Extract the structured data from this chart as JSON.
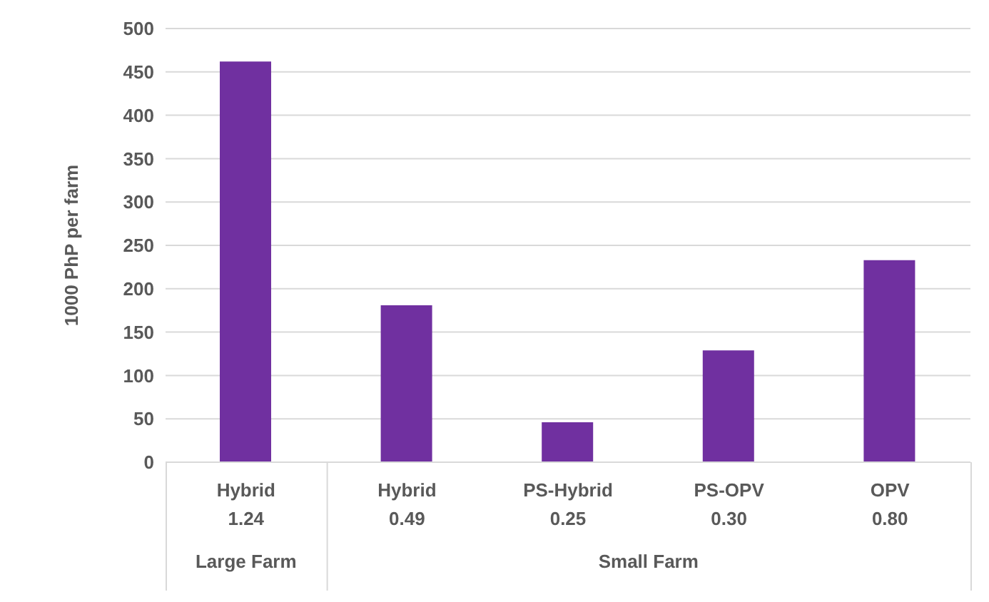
{
  "chart_data": {
    "type": "bar",
    "ylabel": "1000 PhP per farm",
    "categories": [
      "Hybrid\n1.24",
      "Hybrid\n0.49",
      "PS-Hybrid\n0.25",
      "PS-OPV\n0.30",
      "OPV\n0.80"
    ],
    "values": [
      462,
      181,
      46,
      129,
      233
    ],
    "color": "#7030a0",
    "ylim": [
      0,
      500
    ],
    "yticks": [
      0,
      50,
      100,
      150,
      200,
      250,
      300,
      350,
      400,
      450,
      500
    ],
    "grid": "y",
    "annotations": [
      "Large Farm",
      "Small Farm"
    ]
  }
}
